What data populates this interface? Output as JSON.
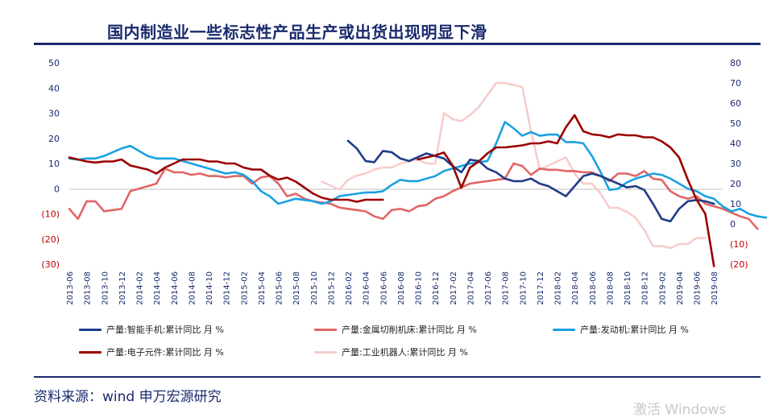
{
  "title": "国内制造业一些标志性产品生产或出货出现明显下滑",
  "source": "资料来源：wind  申万宏源研究",
  "watermark": "激活 Windows",
  "chart_data": {
    "type": "line",
    "left_axis": {
      "ylim": [
        -30,
        50
      ],
      "ticks": [
        50,
        40,
        30,
        20,
        10,
        0,
        -10,
        -20,
        -30
      ],
      "tick_labels": [
        "50",
        "40",
        "30",
        "20",
        "10",
        "0",
        "(10)",
        "(20)",
        "(30)"
      ],
      "negative_color": "#c00000"
    },
    "right_axis": {
      "ylim": [
        -20,
        80
      ],
      "ticks": [
        80,
        70,
        60,
        50,
        40,
        30,
        20,
        10,
        0,
        -10,
        -20
      ],
      "tick_labels": [
        "80",
        "70",
        "60",
        "50",
        "40",
        "30",
        "20",
        "10",
        "0",
        "(10)",
        "(20)"
      ],
      "negative_color": "#c00000"
    },
    "x_range": [
      "2013-06",
      "2019-09"
    ],
    "x_tick_labels": [
      "2013-06",
      "2013-08",
      "2013-10",
      "2013-12",
      "2014-02",
      "2014-04",
      "2014-06",
      "2014-08",
      "2014-10",
      "2014-12",
      "2015-02",
      "2015-04",
      "2015-06",
      "2015-08",
      "2015-10",
      "2015-12",
      "2016-02",
      "2016-04",
      "2016-06",
      "2016-08",
      "2016-10",
      "2016-12",
      "2017-02",
      "2017-04",
      "2017-06",
      "2017-08",
      "2017-10",
      "2017-12",
      "2018-02",
      "2018-04",
      "2018-06",
      "2018-08",
      "2018-10",
      "2018-12",
      "2019-02",
      "2019-04",
      "2019-06",
      "2019-08"
    ],
    "grid": false,
    "legend_position": "bottom",
    "series": [
      {
        "name": "产量:智能手机:累计同比 月 %",
        "axis": "left",
        "color": "#1f3c88",
        "start": "2016-02",
        "values": [
          19,
          16,
          11,
          10.5,
          15,
          14.5,
          12,
          11,
          12.5,
          14,
          13,
          12,
          9,
          6.5,
          11.5,
          11,
          8,
          6.5,
          4,
          3,
          3,
          4,
          2,
          1,
          -1,
          -3,
          1,
          5,
          6,
          5,
          3.5,
          2,
          0.5,
          1,
          -0.5,
          -6,
          -12,
          -13,
          -8,
          -5,
          -4.5,
          -5,
          -6
        ]
      },
      {
        "name": "产量:金属切削机床:累计同比 月 %",
        "axis": "left",
        "color": "#e06666",
        "start": "2013-06",
        "values": [
          -8,
          -12,
          -5,
          -5,
          -9,
          -8.5,
          -8,
          -1,
          0,
          1,
          2,
          8,
          6.5,
          6.5,
          5.5,
          6,
          5,
          5,
          4.5,
          5,
          5,
          2,
          4.5,
          5,
          2,
          -3,
          -2,
          -4,
          -5,
          -5.5,
          -6,
          -7.5,
          -8,
          -8.5,
          -9,
          -11,
          -12,
          -8.5,
          -8,
          -9,
          -7,
          -6.5,
          -4,
          -3,
          -1,
          0.5,
          2,
          2.5,
          3,
          3.5,
          4,
          10,
          9,
          5.5,
          8,
          7.5,
          7.5,
          7,
          7,
          6.5,
          6.5,
          5,
          3,
          6,
          6,
          5,
          7,
          4,
          3.5,
          -1,
          -3,
          -4,
          -3,
          -6,
          -7,
          -8,
          -9.5,
          -11,
          -12,
          -16
        ]
      },
      {
        "name": "产量:发动机:累计同比 月 %",
        "axis": "left",
        "color": "#1ba1e2",
        "start": "2013-06",
        "values": [
          12,
          11.5,
          12,
          12,
          13,
          14.5,
          16,
          17,
          15,
          13,
          12,
          12,
          12,
          11,
          10,
          9,
          8,
          7,
          6,
          6.5,
          5.5,
          3,
          -1,
          -3,
          -6,
          -5,
          -4,
          -4.5,
          -5,
          -6,
          -5,
          -3,
          -2.5,
          -2,
          -1.5,
          -1.5,
          -1,
          1.5,
          3.5,
          3,
          3,
          4,
          5,
          7,
          8,
          9,
          10,
          10.5,
          11,
          18,
          26.5,
          24,
          21,
          22.5,
          21,
          21.5,
          21.5,
          18.5,
          18.5,
          18,
          13,
          6.5,
          -0.5,
          0,
          2.5,
          4,
          5,
          6,
          5.5,
          4,
          2,
          0,
          -1,
          -3,
          -4,
          -7,
          -9,
          -8,
          -10,
          -11,
          -11.5,
          -11,
          -10
        ]
      },
      {
        "name": "产量:电子元件:累计同比 月 %",
        "axis": "right",
        "color": "#9b0000",
        "start": "2013-06",
        "segments": [
          {
            "start": "2013-06",
            "values": [
              33,
              32,
              31,
              30.5,
              31,
              31,
              32,
              29,
              28,
              27,
              25,
              28,
              30,
              32,
              32,
              32,
              31,
              31,
              30,
              30,
              28,
              27,
              27,
              24,
              22,
              23,
              21,
              18,
              15,
              13,
              12,
              12,
              12,
              11,
              12,
              12,
              12
            ]
          },
          {
            "start": "2016-10",
            "values": [
              32,
              33,
              34,
              35.5,
              29,
              18,
              28,
              31,
              35,
              38,
              38,
              38.5,
              39,
              40,
              40,
              41,
              40,
              48,
              54,
              46,
              44.5,
              44,
              43,
              44.5,
              44,
              44,
              43,
              43,
              41,
              38,
              33,
              22,
              12,
              5,
              -21
            ]
          }
        ]
      },
      {
        "name": "产量:工业机器人:累计同比 月 %",
        "axis": "right",
        "color": "#f7cccc",
        "start": "2015-11",
        "values": [
          21,
          19,
          17,
          22,
          24,
          25,
          27,
          28,
          28,
          30,
          31,
          32,
          30,
          30,
          55,
          52,
          51,
          54,
          58,
          64,
          70,
          70,
          69,
          68,
          46,
          27,
          29,
          31,
          33,
          25,
          20,
          20,
          15,
          8,
          8,
          6,
          3,
          -3,
          -11,
          -11,
          -12,
          -10,
          -10,
          -7,
          -7
        ]
      }
    ]
  }
}
